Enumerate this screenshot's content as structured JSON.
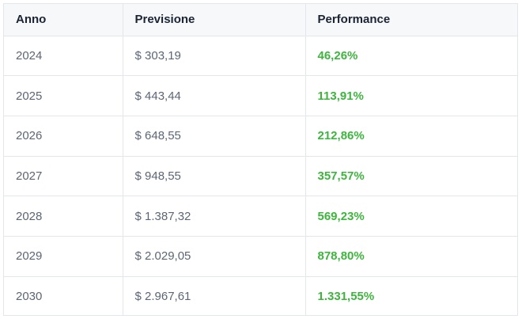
{
  "table": {
    "headers": [
      "Anno",
      "Previsione",
      "Performance"
    ],
    "rows": [
      {
        "year": "2024",
        "forecast": "$ 303,19",
        "performance": "46,26%"
      },
      {
        "year": "2025",
        "forecast": "$ 443,44",
        "performance": "113,91%"
      },
      {
        "year": "2026",
        "forecast": "$ 648,55",
        "performance": "212,86%"
      },
      {
        "year": "2027",
        "forecast": "$ 948,55",
        "performance": "357,57%"
      },
      {
        "year": "2028",
        "forecast": "$ 1.387,32",
        "performance": "569,23%"
      },
      {
        "year": "2029",
        "forecast": "$ 2.029,05",
        "performance": "878,80%"
      },
      {
        "year": "2030",
        "forecast": "$ 2.967,61",
        "performance": "1.331,55%"
      }
    ]
  },
  "colors": {
    "performance_positive": "#3db53d",
    "header_background": "#f6f8fa",
    "border": "#e3e6ea"
  }
}
